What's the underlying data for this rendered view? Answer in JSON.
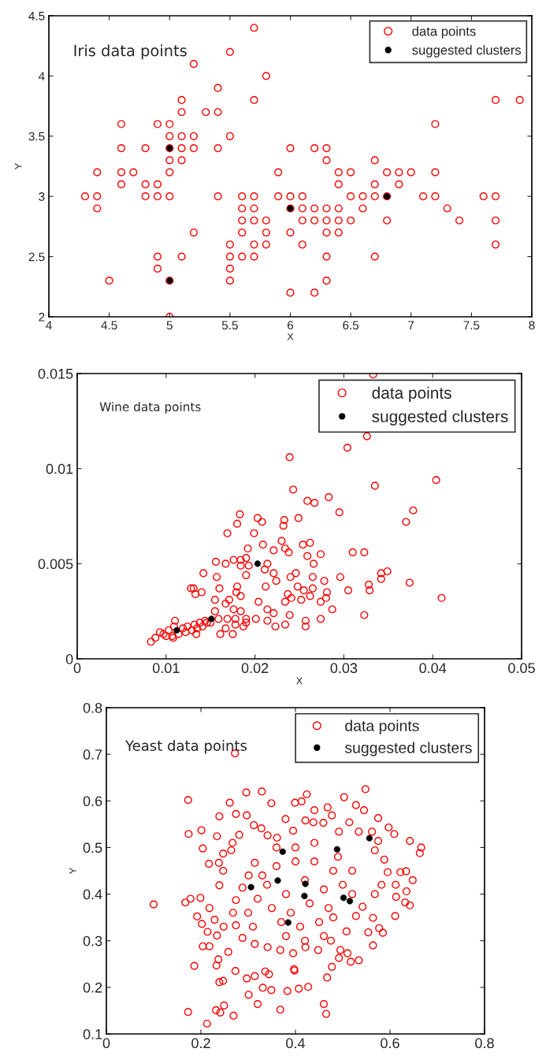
{
  "chart_data": [
    {
      "type": "scatter",
      "annotations": [
        "Iris data points"
      ],
      "xlabel": "X",
      "ylabel": "Y",
      "xlim": [
        4,
        8
      ],
      "ylim": [
        2,
        4.5
      ],
      "xticks": [
        4,
        4.5,
        5,
        5.5,
        6,
        6.5,
        7,
        7.5,
        8
      ],
      "yticks": [
        2,
        2.5,
        3,
        3.5,
        4,
        4.5
      ],
      "legend": "top right",
      "marker": "circle",
      "grid": false,
      "series": [
        {
          "name": "data points",
          "color": "#ff0000",
          "x": [
            5.7,
            5.5,
            5.2,
            5.8,
            5.4,
            5.1,
            5.7,
            7.7,
            7.9,
            5.1,
            5.3,
            5.4,
            4.6,
            4.9,
            5.0,
            7.2,
            5.0,
            5.1,
            5.2,
            5.5,
            4.6,
            4.8,
            5.0,
            5.1,
            5.2,
            5.4,
            6.0,
            6.2,
            6.3,
            5.0,
            5.1,
            6.3,
            6.7,
            4.4,
            4.6,
            4.7,
            5.0,
            5.9,
            6.4,
            6.5,
            6.8,
            6.9,
            7.0,
            7.2,
            4.6,
            4.8,
            4.9,
            6.4,
            6.7,
            6.9,
            4.3,
            4.4,
            4.8,
            4.9,
            5.0,
            5.4,
            5.6,
            5.7,
            5.9,
            6.0,
            6.1,
            6.5,
            6.6,
            6.7,
            6.8,
            7.1,
            7.2,
            7.6,
            7.7,
            4.4,
            5.6,
            5.7,
            6.0,
            6.1,
            6.2,
            6.3,
            6.4,
            6.6,
            7.3,
            5.6,
            5.7,
            5.8,
            6.1,
            6.2,
            6.3,
            6.4,
            6.5,
            6.8,
            7.4,
            7.7,
            5.2,
            5.6,
            5.8,
            6.0,
            6.3,
            6.4,
            5.5,
            5.7,
            5.8,
            6.1,
            7.7,
            4.9,
            5.1,
            5.5,
            5.6,
            5.7,
            6.3,
            6.7,
            4.9,
            5.5,
            4.5,
            5.0,
            5.5,
            6.3,
            6.0,
            6.2,
            5.0
          ],
          "values": [
            4.4,
            4.2,
            4.1,
            4.0,
            3.9,
            3.8,
            3.8,
            3.8,
            3.8,
            3.7,
            3.7,
            3.7,
            3.6,
            3.6,
            3.6,
            3.6,
            3.5,
            3.5,
            3.5,
            3.5,
            3.4,
            3.4,
            3.4,
            3.4,
            3.4,
            3.4,
            3.4,
            3.4,
            3.4,
            3.3,
            3.3,
            3.3,
            3.3,
            3.2,
            3.2,
            3.2,
            3.2,
            3.2,
            3.2,
            3.2,
            3.2,
            3.2,
            3.2,
            3.2,
            3.1,
            3.1,
            3.1,
            3.1,
            3.1,
            3.1,
            3.0,
            3.0,
            3.0,
            3.0,
            3.0,
            3.0,
            3.0,
            3.0,
            3.0,
            3.0,
            3.0,
            3.0,
            3.0,
            3.0,
            3.0,
            3.0,
            3.0,
            3.0,
            3.0,
            2.9,
            2.9,
            2.9,
            2.9,
            2.9,
            2.9,
            2.9,
            2.9,
            2.9,
            2.9,
            2.8,
            2.8,
            2.8,
            2.8,
            2.8,
            2.8,
            2.8,
            2.8,
            2.8,
            2.8,
            2.8,
            2.7,
            2.7,
            2.7,
            2.7,
            2.7,
            2.7,
            2.6,
            2.6,
            2.6,
            2.6,
            2.6,
            2.5,
            2.5,
            2.5,
            2.5,
            2.5,
            2.5,
            2.5,
            2.4,
            2.4,
            2.3,
            2.3,
            2.3,
            2.3,
            2.2,
            2.2,
            2.0
          ]
        },
        {
          "name": "suggested clusters",
          "color": "#000000",
          "x": [
            5.0,
            5.0,
            6.0,
            6.8
          ],
          "values": [
            3.4,
            2.3,
            2.9,
            3.0
          ]
        }
      ]
    },
    {
      "type": "scatter",
      "annotations": [
        "Wine data points"
      ],
      "xlabel": "X",
      "xlim": [
        0,
        0.05
      ],
      "ylim": [
        0,
        0.015
      ],
      "xticks": [
        0,
        0.01,
        0.02,
        0.03,
        0.04,
        0.05
      ],
      "yticks": [
        0,
        0.005,
        0.01,
        0.015
      ],
      "legend": "top right",
      "marker": "circle",
      "grid": false,
      "series": [
        {
          "name": "data points",
          "color": "#ff0000",
          "x": [
            0.0333,
            0.0326,
            0.0304,
            0.0239,
            0.0404,
            0.0335,
            0.0243,
            0.0283,
            0.0259,
            0.0267,
            0.0295,
            0.0378,
            0.037,
            0.0183,
            0.018,
            0.0203,
            0.0208,
            0.0233,
            0.0249,
            0.0232,
            0.0169,
            0.0199,
            0.0209,
            0.023,
            0.0254,
            0.0262,
            0.0192,
            0.0221,
            0.0234,
            0.0238,
            0.0259,
            0.0274,
            0.031,
            0.0323,
            0.0156,
            0.0176,
            0.0167,
            0.0184,
            0.019,
            0.0184,
            0.0193,
            0.0214,
            0.0266,
            0.0142,
            0.0211,
            0.0221,
            0.0246,
            0.019,
            0.0157,
            0.0224,
            0.024,
            0.0265,
            0.0278,
            0.0296,
            0.0342,
            0.0349,
            0.0342,
            0.0328,
            0.0374,
            0.0128,
            0.0131,
            0.014,
            0.0133,
            0.016,
            0.018,
            0.0179,
            0.0184,
            0.0212,
            0.0248,
            0.0255,
            0.0265,
            0.0237,
            0.0241,
            0.0262,
            0.0281,
            0.028,
            0.0305,
            0.0329,
            0.041,
            0.0155,
            0.0167,
            0.0171,
            0.0204,
            0.0234,
            0.0252,
            0.0274,
            0.0155,
            0.0176,
            0.0184,
            0.0214,
            0.0287,
            0.0221,
            0.0239,
            0.0323,
            0.0159,
            0.0169,
            0.0178,
            0.019,
            0.0201,
            0.0214,
            0.0257,
            0.0274,
            0.0144,
            0.0178,
            0.019,
            0.0187,
            0.0167,
            0.0223,
            0.0234,
            0.0257,
            0.0161,
            0.0175,
            0.0134,
            0.011,
            0.0083,
            0.0088,
            0.0093,
            0.0097,
            0.0103,
            0.0107,
            0.0109,
            0.0114,
            0.0119,
            0.0122,
            0.0124,
            0.0129,
            0.0132,
            0.0135,
            0.0138,
            0.0141,
            0.0146,
            0.015,
            0.01,
            0.0108
          ],
          "values": [
            0.01495,
            0.0117,
            0.0111,
            0.0106,
            0.0094,
            0.0091,
            0.0089,
            0.0085,
            0.0083,
            0.0082,
            0.0077,
            0.0078,
            0.0072,
            0.0076,
            0.0071,
            0.0074,
            0.0072,
            0.0073,
            0.0074,
            0.007,
            0.0066,
            0.0066,
            0.006,
            0.0062,
            0.006,
            0.0061,
            0.0058,
            0.0057,
            0.0058,
            0.0056,
            0.0054,
            0.0055,
            0.0056,
            0.0056,
            0.0051,
            0.0052,
            0.005,
            0.0052,
            0.0053,
            0.0049,
            0.0049,
            0.005,
            0.005,
            0.0045,
            0.0047,
            0.0045,
            0.0045,
            0.0044,
            0.0043,
            0.0041,
            0.0043,
            0.0043,
            0.0041,
            0.0043,
            0.0045,
            0.0046,
            0.0042,
            0.0039,
            0.004,
            0.0037,
            0.0037,
            0.0035,
            0.0034,
            0.0037,
            0.0038,
            0.0035,
            0.0033,
            0.0038,
            0.0038,
            0.0036,
            0.0037,
            0.0034,
            0.0032,
            0.0033,
            0.0035,
            0.0032,
            0.0036,
            0.0036,
            0.0032,
            0.0031,
            0.0029,
            0.0031,
            0.003,
            0.003,
            0.0031,
            0.003,
            0.0025,
            0.0026,
            0.0025,
            0.0026,
            0.0026,
            0.0024,
            0.0023,
            0.0023,
            0.0021,
            0.0021,
            0.0021,
            0.0021,
            0.0021,
            0.002,
            0.002,
            0.0021,
            0.002,
            0.0018,
            0.0019,
            0.0017,
            0.0016,
            0.0017,
            0.0018,
            0.0017,
            0.0013,
            0.0013,
            0.0013,
            0.002,
            0.0009,
            0.0011,
            0.0014,
            0.0013,
            0.0015,
            0.0012,
            0.0017,
            0.0013,
            0.0016,
            0.0014,
            0.0017,
            0.0015,
            0.0018,
            0.0016,
            0.0019,
            0.0017,
            0.0019,
            0.0019,
            0.0012,
            0.0011
          ]
        },
        {
          "name": "suggested clusters",
          "color": "#000000",
          "x": [
            0.0112,
            0.0151,
            0.0203
          ],
          "values": [
            0.0015,
            0.0021,
            0.005
          ]
        }
      ]
    },
    {
      "type": "scatter",
      "annotations": [
        "Yeast data points"
      ],
      "ylabel": "Y",
      "xlim": [
        0,
        0.8
      ],
      "ylim": [
        0.1,
        0.8
      ],
      "xticks": [
        0,
        0.2,
        0.4,
        0.6,
        0.8
      ],
      "yticks": [
        0.1,
        0.2,
        0.3,
        0.4,
        0.5,
        0.6,
        0.7,
        0.8
      ],
      "legend": "top right",
      "marker": "circle",
      "grid": false,
      "series": [
        {
          "name": "data points",
          "color": "#ff0000",
          "x": [
            0.272,
            0.173,
            0.296,
            0.329,
            0.424,
            0.548,
            0.503,
            0.261,
            0.349,
            0.399,
            0.413,
            0.239,
            0.274,
            0.297,
            0.44,
            0.468,
            0.477,
            0.528,
            0.545,
            0.575,
            0.174,
            0.201,
            0.234,
            0.204,
            0.217,
            0.597,
            0.609,
            0.642,
            0.666,
            0.663,
            0.622,
            0.634,
            0.648,
            0.612,
            0.635,
            0.613,
            0.632,
            0.642,
            0.611,
            0.564,
            0.577,
            0.585,
            0.554,
            0.564,
            0.534,
            0.517,
            0.51,
            0.495,
            0.492,
            0.477,
            0.467,
            0.46,
            0.465,
            0.427,
            0.407,
            0.383,
            0.368,
            0.397,
            0.398,
            0.349,
            0.331,
            0.344,
            0.336,
            0.32,
            0.301,
            0.314,
            0.297,
            0.273,
            0.269,
            0.213,
            0.173,
            0.232,
            0.241,
            0.249,
            0.247,
            0.239,
            0.186,
            0.233,
            0.237,
            0.258,
            0.204,
            0.218,
            0.234,
            0.214,
            0.202,
            0.192,
            0.218,
            0.199,
            0.178,
            0.167,
            0.1,
            0.229,
            0.248,
            0.239,
            0.247,
            0.238,
            0.247,
            0.264,
            0.267,
            0.281,
            0.312,
            0.328,
            0.341,
            0.361,
            0.379,
            0.395,
            0.421,
            0.438,
            0.459,
            0.492,
            0.514,
            0.534,
            0.562,
            0.575,
            0.568,
            0.588,
            0.595,
            0.582,
            0.568,
            0.542,
            0.528,
            0.508,
            0.475,
            0.448,
            0.421,
            0.395,
            0.368,
            0.341,
            0.314,
            0.288,
            0.274,
            0.268,
            0.274,
            0.288,
            0.301,
            0.314,
            0.36,
            0.4,
            0.44,
            0.48,
            0.34,
            0.38,
            0.42,
            0.46,
            0.5,
            0.35,
            0.39,
            0.43,
            0.47,
            0.37,
            0.41,
            0.45,
            0.4,
            0.44,
            0.36,
            0.49,
            0.52,
            0.52,
            0.32,
            0.33,
            0.3,
            0.31,
            0.42,
            0.46,
            0.38,
            0.48
          ],
          "values": [
            0.702,
            0.602,
            0.618,
            0.62,
            0.614,
            0.625,
            0.608,
            0.596,
            0.595,
            0.596,
            0.599,
            0.567,
            0.572,
            0.569,
            0.58,
            0.586,
            0.569,
            0.591,
            0.58,
            0.563,
            0.529,
            0.537,
            0.524,
            0.498,
            0.465,
            0.543,
            0.529,
            0.514,
            0.5,
            0.488,
            0.447,
            0.449,
            0.43,
            0.42,
            0.406,
            0.394,
            0.382,
            0.376,
            0.353,
            0.349,
            0.327,
            0.317,
            0.318,
            0.29,
            0.258,
            0.255,
            0.273,
            0.28,
            0.263,
            0.244,
            0.221,
            0.164,
            0.143,
            0.201,
            0.197,
            0.192,
            0.152,
            0.239,
            0.236,
            0.194,
            0.199,
            0.228,
            0.234,
            0.164,
            0.184,
            0.224,
            0.219,
            0.235,
            0.139,
            0.122,
            0.147,
            0.151,
            0.146,
            0.161,
            0.214,
            0.211,
            0.246,
            0.247,
            0.26,
            0.276,
            0.288,
            0.288,
            0.311,
            0.319,
            0.336,
            0.352,
            0.37,
            0.392,
            0.39,
            0.382,
            0.378,
            0.345,
            0.33,
            0.419,
            0.45,
            0.467,
            0.487,
            0.494,
            0.51,
            0.527,
            0.548,
            0.541,
            0.526,
            0.521,
            0.561,
            0.536,
            0.558,
            0.554,
            0.553,
            0.534,
            0.554,
            0.534,
            0.534,
            0.514,
            0.494,
            0.474,
            0.447,
            0.42,
            0.4,
            0.373,
            0.353,
            0.32,
            0.3,
            0.28,
            0.286,
            0.273,
            0.28,
            0.286,
            0.293,
            0.306,
            0.333,
            0.36,
            0.387,
            0.414,
            0.44,
            0.467,
            0.46,
            0.47,
            0.47,
            0.45,
            0.42,
            0.4,
            0.43,
            0.41,
            0.42,
            0.37,
            0.36,
            0.38,
            0.37,
            0.34,
            0.33,
            0.34,
            0.5,
            0.51,
            0.5,
            0.48,
            0.45,
            0.4,
            0.39,
            0.44,
            0.36,
            0.33,
            0.3,
            0.31,
            0.31,
            0.35
          ]
        },
        {
          "name": "suggested clusters",
          "color": "#000000",
          "x": [
            0.373,
            0.3625,
            0.306,
            0.421,
            0.419,
            0.488,
            0.5565,
            0.5017,
            0.515,
            0.3846
          ],
          "values": [
            0.491,
            0.429,
            0.415,
            0.422,
            0.396,
            0.496,
            0.52,
            0.392,
            0.385,
            0.339
          ]
        }
      ]
    }
  ]
}
